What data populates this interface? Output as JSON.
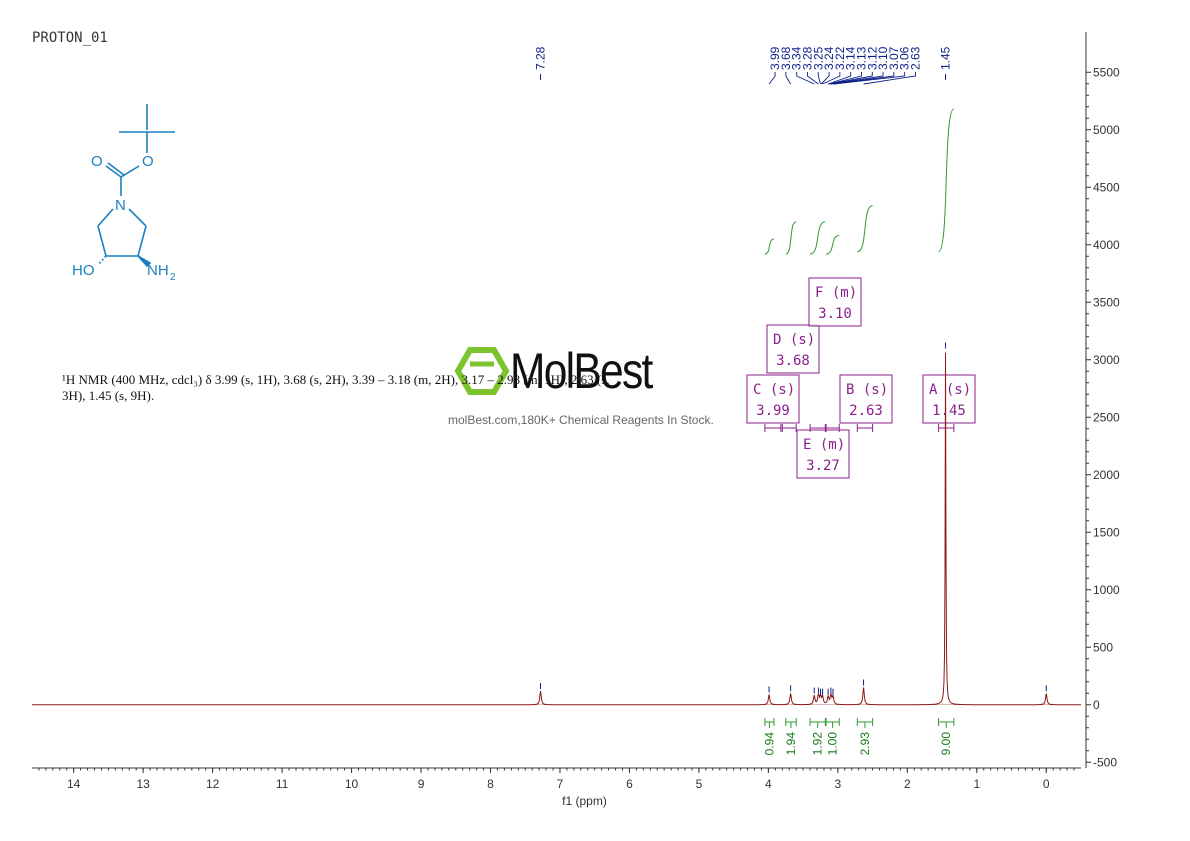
{
  "title": "PROTON_01",
  "nmr_description": "¹H NMR (400 MHz, cdcl₃) δ 3.99 (s, 1H), 3.68 (s, 2H), 3.39 – 3.18 (m, 2H), 3.17 – 2.98 (m, 1H), 2.63 (s, 3H), 1.45 (s, 9H).",
  "watermark": {
    "brand": "MolBest",
    "tagline": "molBest.com,180K+ Chemical Reagents In Stock."
  },
  "molecule": {
    "labels": {
      "o1": "O",
      "o2": "O",
      "n": "N",
      "ho": "HO",
      "nh": "NH",
      "sub2": "2"
    },
    "color": "#1a7fc0"
  },
  "colors": {
    "spectrum": "#8b1a1a",
    "peak_labels": "#0b1f8a",
    "integrals": "#2e9a2e",
    "boxes": "#8c1f8c",
    "axis": "#333333"
  },
  "chart_data": {
    "type": "line",
    "xlabel": "f1 (ppm)",
    "ylabel": "",
    "x_reversed": true,
    "xlim": [
      14.6,
      -0.5
    ],
    "ylim": [
      -550,
      5850
    ],
    "x_ticks": [
      14,
      13,
      12,
      11,
      10,
      9,
      8,
      7,
      6,
      5,
      4,
      3,
      2,
      1,
      0
    ],
    "y_ticks": [
      -500,
      0,
      500,
      1000,
      1500,
      2000,
      2500,
      3000,
      3500,
      4000,
      4500,
      5000,
      5500
    ],
    "y_tick_labels": [
      "-500",
      "0",
      "500",
      "1000",
      "1500",
      "2000",
      "2500",
      "3000",
      "3500",
      "4000",
      "4500",
      "5000",
      "5500"
    ],
    "peaks": [
      {
        "ppm": 7.28,
        "height": 120
      },
      {
        "ppm": 3.99,
        "height": 90
      },
      {
        "ppm": 3.68,
        "height": 100
      },
      {
        "ppm": 3.34,
        "height": 80
      },
      {
        "ppm": 3.28,
        "height": 80
      },
      {
        "ppm": 3.25,
        "height": 70
      },
      {
        "ppm": 3.22,
        "height": 70
      },
      {
        "ppm": 3.14,
        "height": 70
      },
      {
        "ppm": 3.1,
        "height": 80
      },
      {
        "ppm": 3.07,
        "height": 70
      },
      {
        "ppm": 2.63,
        "height": 150
      },
      {
        "ppm": 1.45,
        "height": 3080
      },
      {
        "ppm": 0.0,
        "height": 100
      }
    ],
    "peak_labels": [
      "7.28",
      "3.99",
      "3.68",
      "3.34",
      "3.28",
      "3.25",
      "3.24",
      "3.22",
      "3.14",
      "3.13",
      "3.12",
      "3.10",
      "3.07",
      "3.06",
      "2.63",
      "1.45"
    ],
    "peak_label_groups": [
      {
        "labels": [
          "7.28"
        ],
        "ppm": [
          7.28
        ]
      },
      {
        "labels": [
          "3.99",
          "3.68",
          "3.34",
          "3.28",
          "3.25",
          "3.24",
          "3.22",
          "3.14",
          "3.13",
          "3.12",
          "3.10",
          "3.07",
          "3.06",
          "2.63"
        ],
        "ppm": [
          3.99,
          3.68,
          3.34,
          3.28,
          3.25,
          3.24,
          3.22,
          3.14,
          3.13,
          3.12,
          3.1,
          3.07,
          3.06,
          2.63
        ]
      },
      {
        "labels": [
          "1.45"
        ],
        "ppm": [
          1.45
        ]
      }
    ],
    "integrals": [
      {
        "from": 4.05,
        "to": 3.92,
        "value": "0.94"
      },
      {
        "from": 3.75,
        "to": 3.6,
        "value": "1.94"
      },
      {
        "from": 3.4,
        "to": 3.18,
        "value": "1.92"
      },
      {
        "from": 3.17,
        "to": 2.98,
        "value": "1.00"
      },
      {
        "from": 2.72,
        "to": 2.5,
        "value": "2.93"
      },
      {
        "from": 1.55,
        "to": 1.33,
        "value": "9.00"
      }
    ],
    "integral_curves": [
      {
        "from": 4.05,
        "to": 3.92,
        "y0": 3920,
        "y1": 4050
      },
      {
        "from": 3.75,
        "to": 3.6,
        "y0": 3920,
        "y1": 4200
      },
      {
        "from": 3.4,
        "to": 3.18,
        "y0": 3920,
        "y1": 4200
      },
      {
        "from": 3.17,
        "to": 2.98,
        "y0": 3920,
        "y1": 4080
      },
      {
        "from": 2.72,
        "to": 2.5,
        "y0": 3940,
        "y1": 4340
      },
      {
        "from": 1.55,
        "to": 1.33,
        "y0": 3940,
        "y1": 5180
      }
    ],
    "multiplets": [
      {
        "letter": "A",
        "type": "(s)",
        "shift": "1.45",
        "range": [
          1.55,
          1.33
        ]
      },
      {
        "letter": "B",
        "type": "(s)",
        "shift": "2.63",
        "range": [
          2.72,
          2.5
        ]
      },
      {
        "letter": "C",
        "type": "(s)",
        "shift": "3.99",
        "range": [
          4.05,
          3.82
        ]
      },
      {
        "letter": "D",
        "type": "(s)",
        "shift": "3.68",
        "range": [
          3.8,
          3.6
        ]
      },
      {
        "letter": "E",
        "type": "(m)",
        "shift": "3.27",
        "range": [
          3.4,
          3.18
        ]
      },
      {
        "letter": "F",
        "type": "(m)",
        "shift": "3.10",
        "range": [
          3.17,
          2.98
        ]
      }
    ]
  }
}
